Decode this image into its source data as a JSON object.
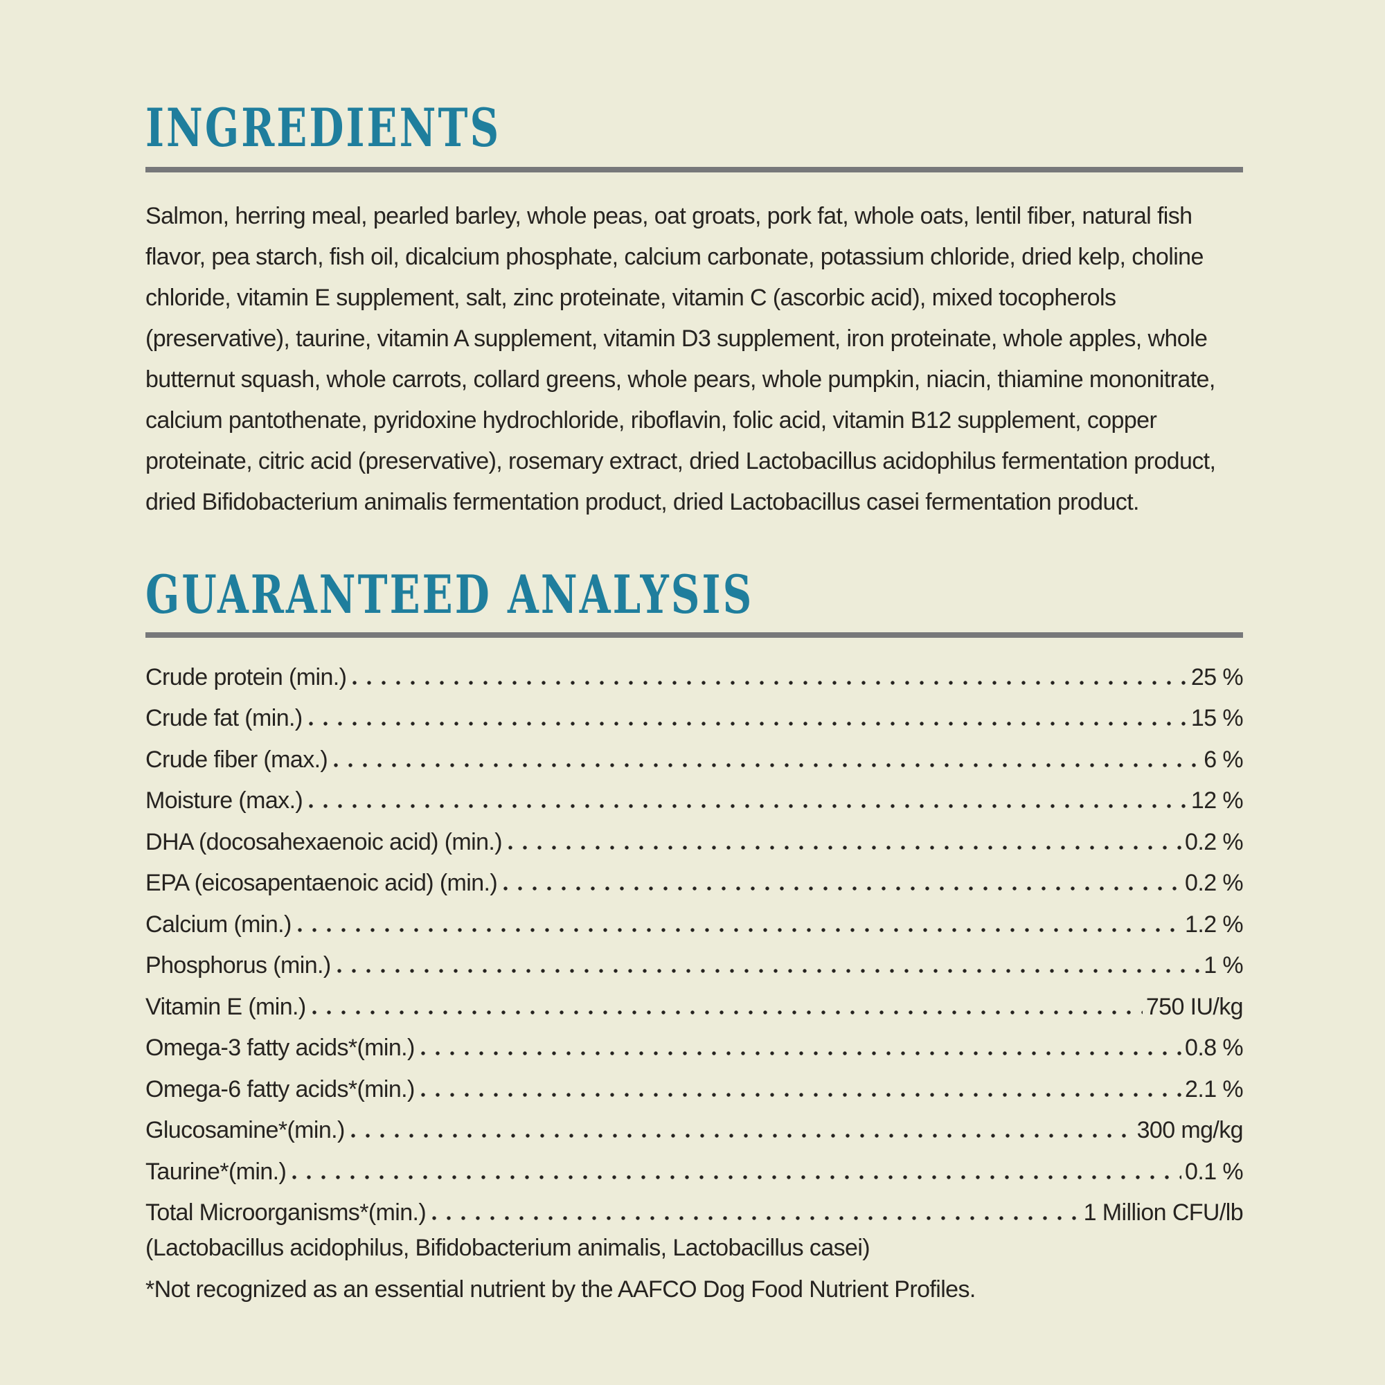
{
  "page": {
    "background_color": "#edecd9",
    "accent_color": "#1f7e9d",
    "rule_color": "#77787a",
    "text_color": "#262320"
  },
  "ingredients": {
    "heading": "INGREDIENTS",
    "text": "Salmon, herring meal, pearled barley, whole peas, oat groats, pork fat, whole oats, lentil fiber, natural fish flavor, pea starch, fish oil, dicalcium phosphate, calcium carbonate, potassium chloride, dried kelp, choline chloride, vitamin E supplement, salt, zinc proteinate, vitamin C (ascorbic acid), mixed tocopherols (preservative), taurine, vitamin A supplement, vitamin D3 supplement, iron proteinate, whole apples, whole butternut squash, whole carrots, collard greens, whole pears, whole pumpkin, niacin, thiamine mononitrate, calcium pantothenate, pyridoxine hydrochloride, riboflavin, folic acid, vitamin B12 supplement, copper proteinate, citric acid (preservative), rosemary extract, dried Lactobacillus acidophilus fermentation product, dried Bifidobacterium animalis fermentation product, dried Lactobacillus casei fermentation product."
  },
  "guaranteed_analysis": {
    "heading": "GUARANTEED ANALYSIS",
    "rows": [
      {
        "label": "Crude protein (min.)",
        "value": "25 %"
      },
      {
        "label": "Crude fat (min.)",
        "value": "15 %"
      },
      {
        "label": "Crude fiber (max.)",
        "value": "6 %"
      },
      {
        "label": "Moisture (max.)",
        "value": "12 %"
      },
      {
        "label": "DHA (docosahexaenoic acid) (min.)",
        "value": "0.2 %"
      },
      {
        "label": "EPA (eicosapentaenoic acid) (min.)",
        "value": "0.2 %"
      },
      {
        "label": "Calcium (min.)",
        "value": "1.2 %"
      },
      {
        "label": "Phosphorus (min.)",
        "value": "1 %"
      },
      {
        "label": "Vitamin E (min.)",
        "value": "750 IU/kg"
      },
      {
        "label": "Omega-3 fatty acids*(min.)",
        "value": "0.8 %"
      },
      {
        "label": "Omega-6 fatty acids*(min.)",
        "value": "2.1 %"
      },
      {
        "label": "Glucosamine*(min.)",
        "value": "300 mg/kg"
      },
      {
        "label": "Taurine*(min.)",
        "value": "0.1 %"
      },
      {
        "label": "Total Microorganisms*(min.)",
        "value": "1 Million CFU/lb"
      }
    ],
    "microorganisms_note": "(Lactobacillus acidophilus, Bifidobacterium animalis, Lactobacillus casei)",
    "footnote": "*Not recognized as an essential nutrient by the AAFCO Dog Food Nutrient Profiles."
  }
}
